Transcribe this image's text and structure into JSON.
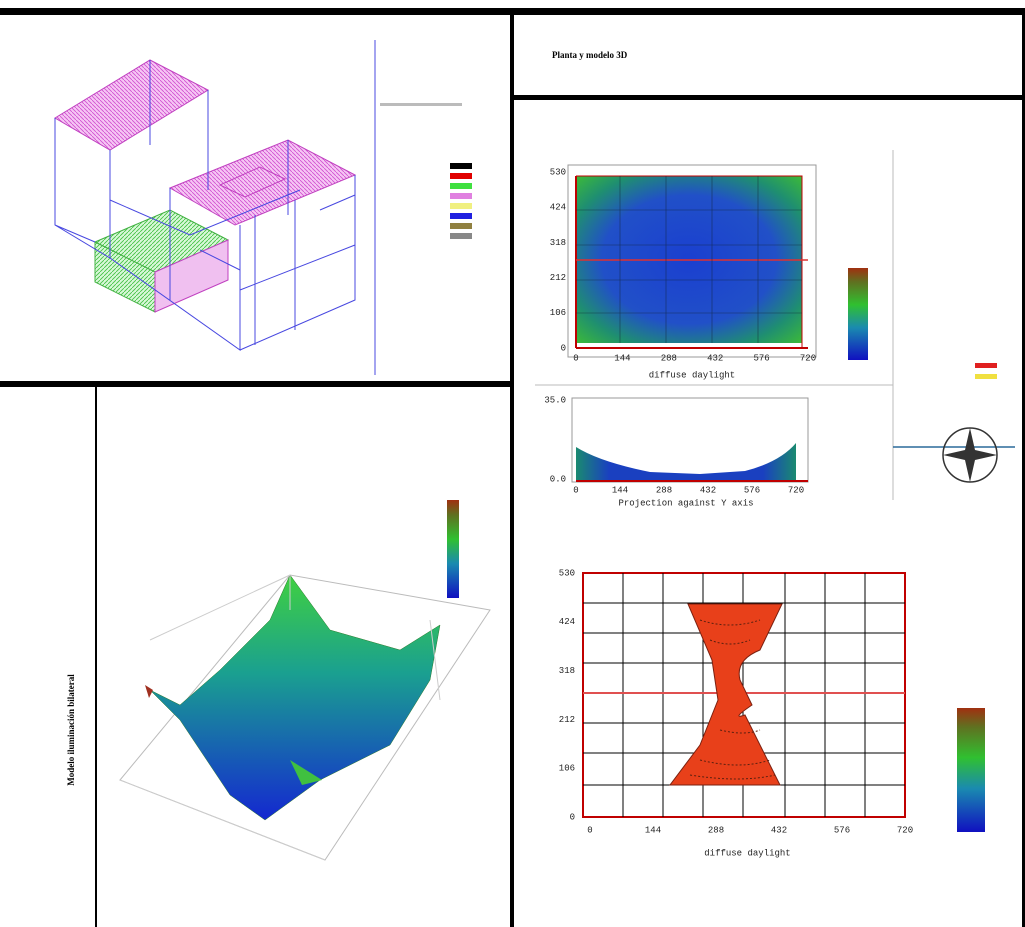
{
  "header": {
    "title": "Planta y modelo 3D"
  },
  "side_title": "Modelo iluminación bilateral",
  "plan_chart": {
    "y_ticks": [
      "0",
      "106",
      "212",
      "318",
      "424",
      "530"
    ],
    "x_ticks": [
      "0",
      "144",
      "288",
      "432",
      "576",
      "720"
    ],
    "x_label": "diffuse daylight"
  },
  "projection_chart": {
    "y_ticks": [
      "0.0",
      "35.0"
    ],
    "x_ticks": [
      "0",
      "144",
      "288",
      "432",
      "576",
      "720"
    ],
    "x_label": "Projection against Y axis"
  },
  "contour_chart": {
    "y_ticks": [
      "0",
      "106",
      "212",
      "318",
      "424",
      "530"
    ],
    "x_ticks": [
      "0",
      "144",
      "288",
      "432",
      "576",
      "720"
    ],
    "x_label": "diffuse daylight"
  }
}
